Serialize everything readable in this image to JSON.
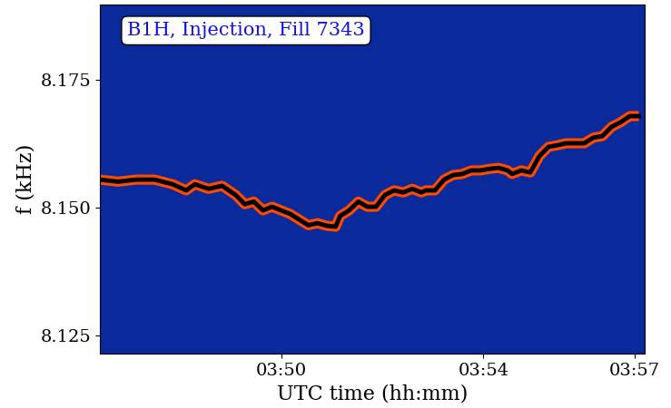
{
  "chart_data": {
    "type": "line",
    "title": "B1H, Injection, Fill 7343",
    "x_label": "UTC time (hh:mm)",
    "y_label": "f (kHz)",
    "x": [
      46.4,
      46.76,
      47.12,
      47.48,
      47.84,
      48.11,
      48.28,
      48.55,
      48.82,
      49.09,
      49.27,
      49.45,
      49.63,
      49.81,
      49.99,
      50.17,
      50.35,
      50.53,
      50.71,
      50.89,
      51.07,
      51.16,
      51.34,
      51.52,
      51.7,
      51.87,
      52.05,
      52.23,
      52.41,
      52.59,
      52.77,
      52.86,
      53.04,
      53.22,
      53.4,
      53.58,
      53.76,
      53.94,
      54.12,
      54.3,
      54.48,
      54.57,
      54.75,
      54.93,
      55.11,
      55.29,
      55.46,
      55.64,
      55.82,
      56.0,
      56.18,
      56.36,
      56.54,
      56.72,
      56.9,
      57.08
    ],
    "series": [
      {
        "color": "#000000",
        "values": [
          8.1555,
          8.1551,
          8.1555,
          8.1555,
          8.1546,
          8.1534,
          8.1546,
          8.1537,
          8.1543,
          8.1525,
          8.1507,
          8.1512,
          8.1495,
          8.1502,
          8.1495,
          8.1488,
          8.1477,
          8.1466,
          8.147,
          8.1465,
          8.1463,
          8.1484,
          8.1495,
          8.1512,
          8.1502,
          8.1502,
          8.1525,
          8.1534,
          8.153,
          8.1537,
          8.153,
          8.1534,
          8.1534,
          8.1555,
          8.1564,
          8.1566,
          8.1573,
          8.1573,
          8.1576,
          8.1578,
          8.1573,
          8.1566,
          8.1573,
          8.1569,
          8.1601,
          8.1619,
          8.1622,
          8.1626,
          8.1626,
          8.1626,
          8.1637,
          8.164,
          8.1658,
          8.1667,
          8.1679,
          8.1679
        ]
      }
    ],
    "xlim": [
      46.4,
      57.2
    ],
    "xticks": [
      {
        "value": 50,
        "label": "03:50"
      },
      {
        "value": 54,
        "label": "03:54"
      },
      {
        "value": 57,
        "label": "03:57"
      }
    ],
    "ylim": [
      8.1215,
      8.1897
    ],
    "yticks": [
      8.125,
      {
        "value": 8.15,
        "label": "8.150"
      },
      8.175
    ],
    "grid": false
  }
}
